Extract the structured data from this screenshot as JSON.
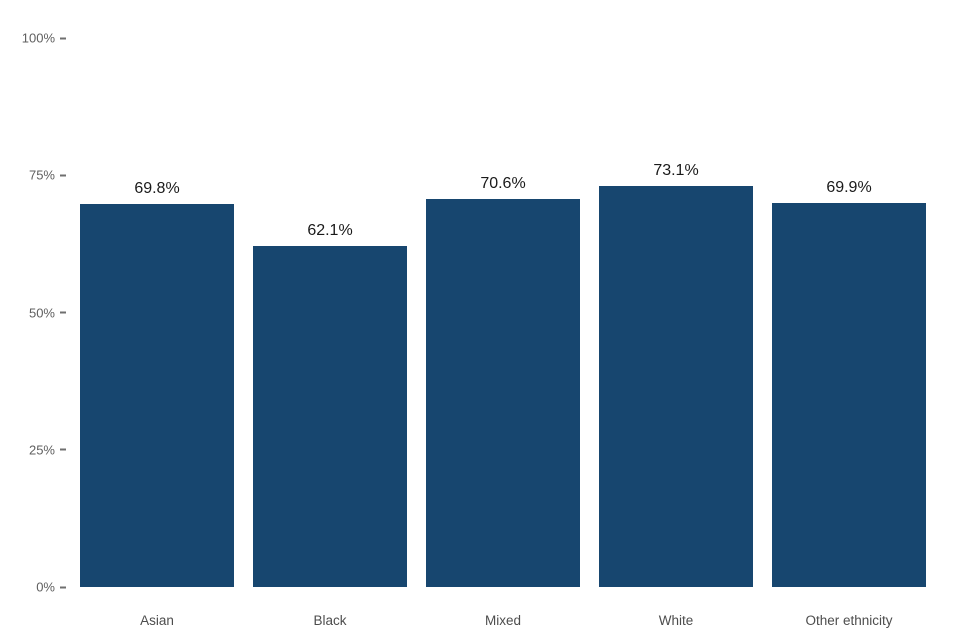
{
  "chart_data": {
    "type": "bar",
    "title": "",
    "xlabel": "",
    "ylabel": "",
    "categories": [
      "Asian",
      "Black",
      "Mixed",
      "White",
      "Other ethnicity"
    ],
    "values": [
      69.8,
      62.1,
      70.6,
      73.1,
      69.9
    ],
    "value_labels": [
      "69.8%",
      "62.1%",
      "70.6%",
      "73.1%",
      "69.9%"
    ],
    "y_ticks": [
      {
        "value": 0,
        "label": "0%"
      },
      {
        "value": 25,
        "label": "25%"
      },
      {
        "value": 50,
        "label": "50%"
      },
      {
        "value": 75,
        "label": "75%"
      },
      {
        "value": 100,
        "label": "100%"
      }
    ],
    "ylim": [
      0,
      100
    ],
    "grid": false,
    "legend": false,
    "bar_color": "#17466F",
    "colors": {
      "value_label_text": "#1a1a1a",
      "category_label_text": "#4d4d4d",
      "axis_tick_text": "#5f5f5f",
      "background": "#ffffff"
    }
  }
}
